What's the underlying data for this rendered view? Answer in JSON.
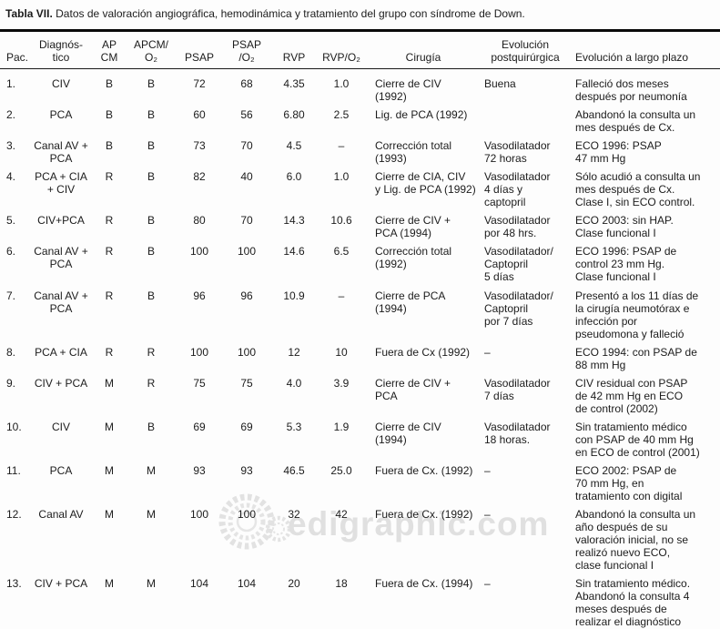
{
  "title": {
    "label": "Tabla VII.",
    "text": "Datos de valoración angiográfica, hemodinámica y tratamiento del grupo con síndrome de Down."
  },
  "table": {
    "headers": [
      "Pac.",
      "Diagnós-\ntico",
      "AP\nCM",
      "APCM/\nO₂",
      "PSAP",
      "PSAP\n/O₂",
      "RVP",
      "RVP/O₂",
      "Cirugía",
      "Evolución\npostquirúrgica",
      "Evolución a largo plazo"
    ],
    "rows": [
      [
        "1.",
        "CIV",
        "B",
        "B",
        "72",
        "68",
        "4.35",
        "1.0",
        "Cierre de CIV\n(1992)",
        "Buena",
        "Falleció dos meses\ndespués por neumonía"
      ],
      [
        "2.",
        "PCA",
        "B",
        "B",
        "60",
        "56",
        "6.80",
        "2.5",
        "Lig. de PCA (1992)",
        "",
        "Abandonó la consulta un\nmes después de Cx."
      ],
      [
        "3.",
        "Canal AV +\nPCA",
        "B",
        "B",
        "73",
        "70",
        "4.5",
        "–",
        "Corrección total\n(1993)",
        "Vasodilatador\n72 horas",
        "ECO 1996: PSAP\n47 mm Hg"
      ],
      [
        "4.",
        "PCA + CIA\n+ CIV",
        "R",
        "B",
        "82",
        "40",
        "6.0",
        "1.0",
        "Cierre de CIA, CIV\ny Lig. de PCA (1992)",
        "Vasodilatador\n4 días y\ncaptopril",
        "Sólo acudió a consulta un\nmes después de Cx.\nClase I, sin ECO control."
      ],
      [
        "5.",
        "CIV+PCA",
        "R",
        "B",
        "80",
        "70",
        "14.3",
        "10.6",
        "Cierre de CIV +\nPCA (1994)",
        "Vasodilatador\npor 48 hrs.",
        "ECO 2003: sin HAP.\nClase funcional I"
      ],
      [
        "6.",
        "Canal AV +\nPCA",
        "R",
        "B",
        "100",
        "100",
        "14.6",
        "6.5",
        "Corrección total\n(1992)",
        "Vasodilatador/\nCaptopril\n5 días",
        "ECO 1996: PSAP de\ncontrol 23 mm Hg.\nClase funcional I"
      ],
      [
        "7.",
        "Canal AV +\nPCA",
        "R",
        "B",
        "96",
        "96",
        "10.9",
        "–",
        "Cierre de PCA\n(1994)",
        "Vasodilatador/\nCaptopril\npor 7 días",
        "Presentó a los 11 días de\nla cirugía neumotórax e\ninfección por\npseudomona y falleció"
      ],
      [
        "8.",
        "PCA + CIA",
        "R",
        "R",
        "100",
        "100",
        "12",
        "10",
        "Fuera de Cx (1992)",
        "–",
        "ECO 1994: con PSAP de\n88 mm Hg"
      ],
      [
        "9.",
        "CIV + PCA",
        "M",
        "R",
        "75",
        "75",
        "4.0",
        "3.9",
        "Cierre de CIV +\nPCA",
        "Vasodilatador\n7 días",
        "CIV residual con PSAP\nde 42 mm Hg en ECO\nde control (2002)"
      ],
      [
        "10.",
        "CIV",
        "M",
        "B",
        "69",
        "69",
        "5.3",
        "1.9",
        "Cierre de CIV\n(1994)",
        "Vasodilatador\n18 horas.",
        "Sin tratamiento médico\ncon PSAP de 40 mm Hg\nen ECO de control (2001)"
      ],
      [
        "11.",
        "PCA",
        "M",
        "M",
        "93",
        "93",
        "46.5",
        "25.0",
        "Fuera de Cx. (1992)",
        "–",
        "ECO 2002: PSAP de\n70 mm Hg, en\ntratamiento con digital"
      ],
      [
        "12.",
        "Canal AV",
        "M",
        "M",
        "100",
        "100",
        "32",
        "42",
        "Fuera de Cx. (1992)",
        "–",
        "Abandonó la consulta un\naño después de su\nvaloración inicial, no se\nrealizó nuevo ECO,\nclase funcional I"
      ],
      [
        "13.",
        "CIV + PCA",
        "M",
        "M",
        "104",
        "104",
        "20",
        "18",
        "Fuera de Cx. (1994)",
        "–",
        "Sin tratamiento médico.\nAbandonó la consulta 4\nmeses después de\nrealizar el diagnóstico"
      ]
    ]
  },
  "watermark": {
    "text": "edigraphic.com",
    "logo": "gear-logo",
    "color": "#e0e0e0"
  }
}
